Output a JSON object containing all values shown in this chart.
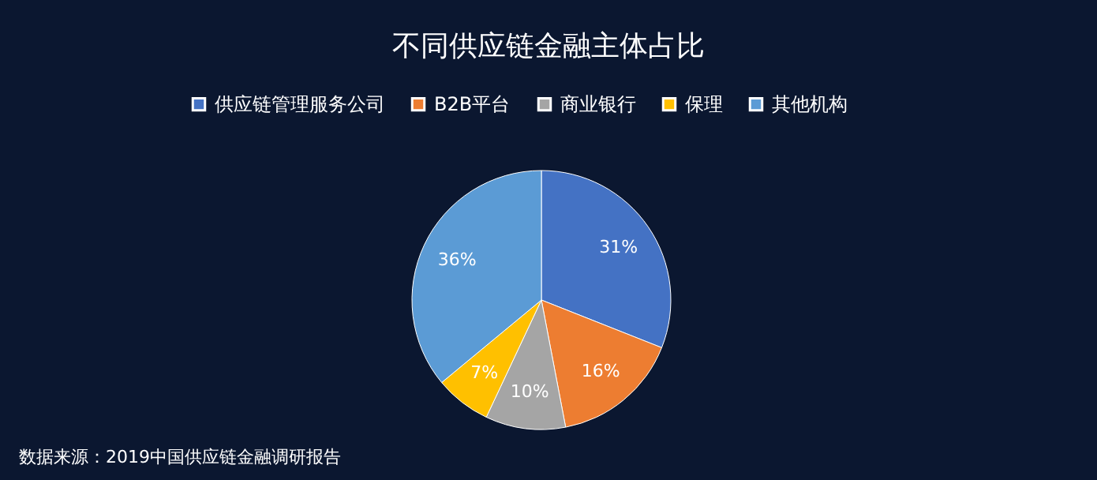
{
  "chart_data": {
    "type": "pie",
    "title": "不同供应链金融主体占比",
    "categories": [
      "供应链管理服务公司",
      "B2B平台",
      "商业银行",
      "保理",
      "其他机构"
    ],
    "values": [
      31,
      16,
      10,
      7,
      36
    ],
    "value_labels": [
      "31%",
      "16%",
      "10%",
      "7%",
      "36%"
    ],
    "colors": [
      "#4472c4",
      "#ed7d31",
      "#a5a5a5",
      "#ffc000",
      "#5b9bd5"
    ],
    "legend": "top",
    "annotations": [
      "数据来源：2019中国供应链金融调研报告"
    ]
  }
}
